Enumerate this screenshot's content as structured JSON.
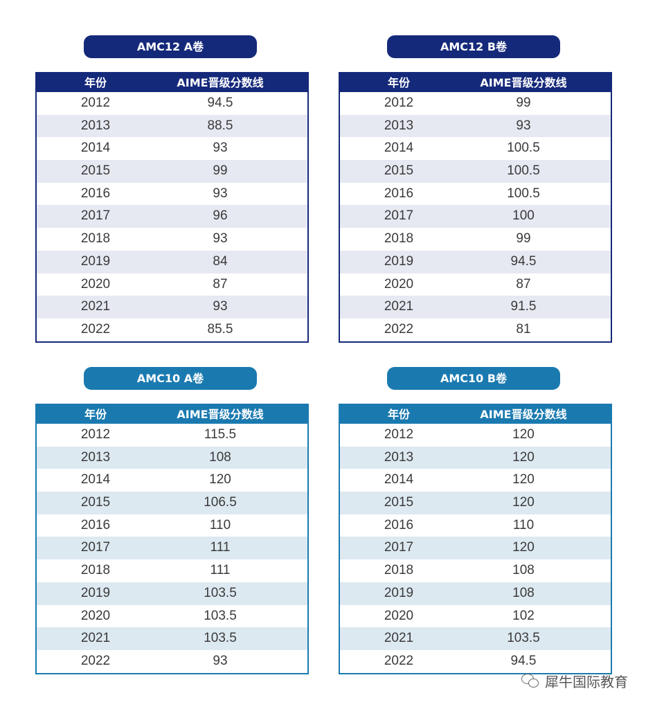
{
  "tables": [
    {
      "title": "AMC12 A卷",
      "header": {
        "year": "年份",
        "score": "AIME晋级分数线"
      },
      "rows": [
        {
          "year": "2012",
          "score": "94.5"
        },
        {
          "year": "2013",
          "score": "88.5"
        },
        {
          "year": "2014",
          "score": "93"
        },
        {
          "year": "2015",
          "score": "99"
        },
        {
          "year": "2016",
          "score": "93"
        },
        {
          "year": "2017",
          "score": "96"
        },
        {
          "year": "2018",
          "score": "93"
        },
        {
          "year": "2019",
          "score": "84"
        },
        {
          "year": "2020",
          "score": "87"
        },
        {
          "year": "2021",
          "score": "93"
        },
        {
          "year": "2022",
          "score": "85.5"
        }
      ]
    },
    {
      "title": "AMC12 B卷",
      "header": {
        "year": "年份",
        "score": "AIME晋级分数线"
      },
      "rows": [
        {
          "year": "2012",
          "score": "99"
        },
        {
          "year": "2013",
          "score": "93"
        },
        {
          "year": "2014",
          "score": "100.5"
        },
        {
          "year": "2015",
          "score": "100.5"
        },
        {
          "year": "2016",
          "score": "100.5"
        },
        {
          "year": "2017",
          "score": "100"
        },
        {
          "year": "2018",
          "score": "99"
        },
        {
          "year": "2019",
          "score": "94.5"
        },
        {
          "year": "2020",
          "score": "87"
        },
        {
          "year": "2021",
          "score": "91.5"
        },
        {
          "year": "2022",
          "score": "81"
        }
      ]
    },
    {
      "title": "AMC10 A卷",
      "header": {
        "year": "年份",
        "score": "AIME晋级分数线"
      },
      "rows": [
        {
          "year": "2012",
          "score": "115.5"
        },
        {
          "year": "2013",
          "score": "108"
        },
        {
          "year": "2014",
          "score": "120"
        },
        {
          "year": "2015",
          "score": "106.5"
        },
        {
          "year": "2016",
          "score": "110"
        },
        {
          "year": "2017",
          "score": "111"
        },
        {
          "year": "2018",
          "score": "111"
        },
        {
          "year": "2019",
          "score": "103.5"
        },
        {
          "year": "2020",
          "score": "103.5"
        },
        {
          "year": "2021",
          "score": "103.5"
        },
        {
          "year": "2022",
          "score": "93"
        }
      ]
    },
    {
      "title": "AMC10 B卷",
      "header": {
        "year": "年份",
        "score": "AIME晋级分数线"
      },
      "rows": [
        {
          "year": "2012",
          "score": "120"
        },
        {
          "year": "2013",
          "score": "120"
        },
        {
          "year": "2014",
          "score": "120"
        },
        {
          "year": "2015",
          "score": "120"
        },
        {
          "year": "2016",
          "score": "110"
        },
        {
          "year": "2017",
          "score": "120"
        },
        {
          "year": "2018",
          "score": "108"
        },
        {
          "year": "2019",
          "score": "108"
        },
        {
          "year": "2020",
          "score": "102"
        },
        {
          "year": "2021",
          "score": "103.5"
        },
        {
          "year": "2022",
          "score": "94.5"
        }
      ]
    }
  ],
  "watermark": {
    "text": "犀牛国际教育",
    "icon": "wechat-icon"
  },
  "colors": {
    "dark_blue": "#15297a",
    "teal_blue": "#1a7ab0"
  }
}
